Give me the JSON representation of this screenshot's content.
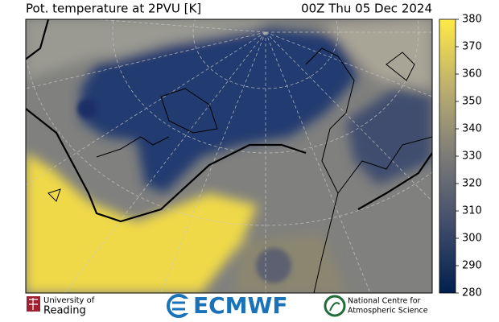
{
  "header": {
    "title": "Pot. temperature at 2PVU [K]",
    "date": "00Z Thu 05 Dec 2024"
  },
  "colorbar": {
    "lim": [
      280,
      380
    ],
    "ticks": [
      280,
      290,
      300,
      310,
      320,
      330,
      340,
      350,
      360,
      370,
      380
    ]
  },
  "logos": {
    "reading": [
      "University of",
      "Reading"
    ],
    "ecmwf": "ECMWF",
    "ncas": [
      "National Centre for",
      "Atmospheric Science"
    ]
  }
}
